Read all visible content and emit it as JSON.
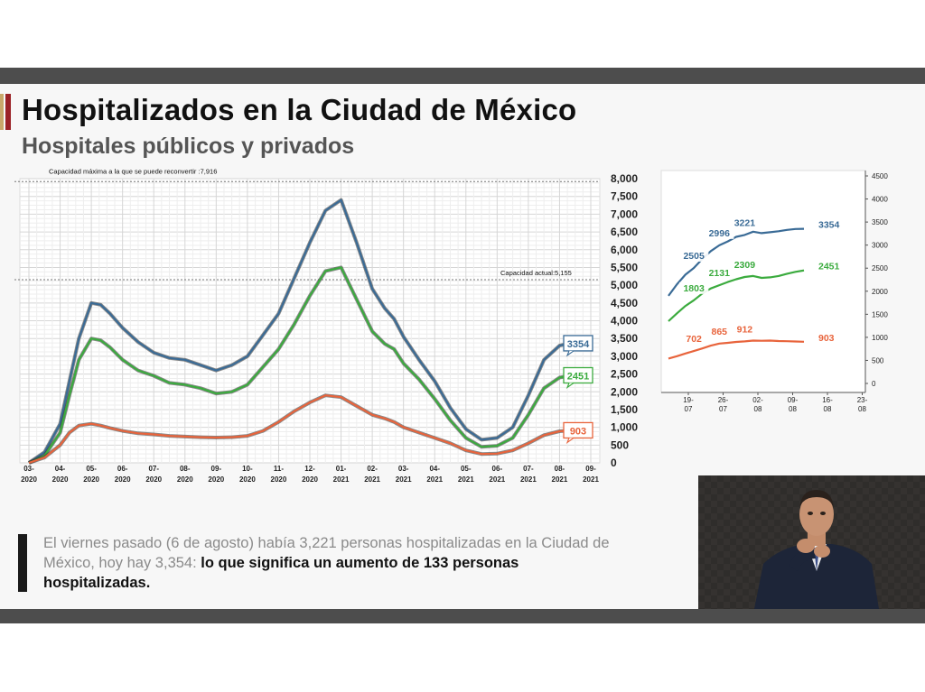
{
  "title": "Hospitalizados en la Ciudad de México",
  "subtitle": "Hospitales públicos y privados",
  "note": {
    "plain": "El viernes pasado (6 de agosto) había 3,221 personas hospitalizadas en la Ciudad de México, hoy hay 3,354: ",
    "bold": "lo que significa un aumento de 133 personas hospitalizadas."
  },
  "colors": {
    "total": "#3a6b96",
    "green": "#3bab3e",
    "orange": "#e8643c",
    "accent": "#9b2226"
  },
  "chart_data": [
    {
      "type": "line",
      "annotations": {
        "max_capacity": {
          "label": "Capacidad máxima a la que se puede reconvertir :7,916",
          "value": 7916
        },
        "current_capacity": {
          "label": "Capacidad actual:5,155",
          "value": 5155
        }
      },
      "x_ticks": [
        "03-2020",
        "04-2020",
        "05-2020",
        "06-2020",
        "07-2020",
        "08-2020",
        "09-2020",
        "10-2020",
        "11-2020",
        "12-2020",
        "01-2021",
        "02-2021",
        "03-2021",
        "04-2021",
        "05-2021",
        "06-2021",
        "07-2021",
        "08-2021",
        "09-2021"
      ],
      "x": [
        0,
        0.5,
        1,
        1.3,
        1.6,
        2,
        2.3,
        2.6,
        3,
        3.5,
        4,
        4.5,
        5,
        5.5,
        6,
        6.5,
        7,
        7.5,
        8,
        8.5,
        9,
        9.5,
        10,
        10.5,
        11,
        11.4,
        11.7,
        12,
        12.5,
        13,
        13.5,
        14,
        14.5,
        15,
        15.5,
        16,
        16.5,
        17,
        17.3,
        17.6
      ],
      "ylim": [
        0,
        8000
      ],
      "y_ticks": [
        "0",
        "500",
        "1,000",
        "1,500",
        "2,000",
        "2,500",
        "3,000",
        "3,500",
        "4,000",
        "4,500",
        "5,000",
        "5,500",
        "6,000",
        "6,500",
        "7,000",
        "7,500",
        "8,000"
      ],
      "series": [
        {
          "label": "3354",
          "values": [
            0,
            300,
            1100,
            2300,
            3500,
            4500,
            4450,
            4200,
            3800,
            3400,
            3100,
            2950,
            2900,
            2750,
            2600,
            2750,
            3000,
            3600,
            4200,
            5200,
            6200,
            7100,
            7400,
            6200,
            4900,
            4350,
            4050,
            3550,
            2900,
            2300,
            1550,
            950,
            650,
            700,
            1000,
            1900,
            2900,
            3300,
            3360,
            3354
          ]
        },
        {
          "label": "2451",
          "values": [
            0,
            200,
            850,
            1900,
            2900,
            3500,
            3450,
            3250,
            2900,
            2600,
            2450,
            2250,
            2200,
            2100,
            1950,
            2000,
            2200,
            2700,
            3200,
            3900,
            4700,
            5400,
            5500,
            4600,
            3700,
            3350,
            3200,
            2800,
            2350,
            1800,
            1200,
            700,
            450,
            480,
            700,
            1350,
            2100,
            2400,
            2450,
            2451
          ]
        },
        {
          "label": "903",
          "values": [
            0,
            150,
            500,
            850,
            1050,
            1100,
            1050,
            980,
            900,
            830,
            800,
            760,
            740,
            720,
            710,
            720,
            760,
            900,
            1150,
            1450,
            1700,
            1900,
            1850,
            1600,
            1350,
            1250,
            1150,
            1000,
            850,
            700,
            550,
            350,
            250,
            260,
            350,
            550,
            780,
            890,
            905,
            903
          ]
        }
      ]
    },
    {
      "type": "line",
      "x_ticks": [
        "19-07",
        "26-07",
        "02-08",
        "09-08",
        "16-08",
        "23-08"
      ],
      "ylim": [
        0,
        4500
      ],
      "y_ticks": [
        "0",
        "500",
        "1000",
        "1500",
        "2000",
        "2500",
        "3000",
        "3500",
        "4000",
        "4500"
      ],
      "x": [
        0,
        2,
        4,
        6,
        8,
        10,
        12,
        14,
        16,
        18,
        20,
        22,
        24,
        26,
        28,
        30,
        32
      ],
      "series": [
        {
          "label": "3354",
          "values": [
            1900,
            2150,
            2360,
            2505,
            2700,
            2870,
            2996,
            3080,
            3180,
            3221,
            3290,
            3260,
            3280,
            3300,
            3330,
            3350,
            3354
          ],
          "point_labels": [
            {
              "i": 3,
              "text": "2505"
            },
            {
              "i": 6,
              "text": "2996"
            },
            {
              "i": 9,
              "text": "3221"
            }
          ]
        },
        {
          "label": "2451",
          "values": [
            1350,
            1520,
            1680,
            1803,
            1950,
            2060,
            2131,
            2200,
            2260,
            2309,
            2330,
            2290,
            2300,
            2330,
            2380,
            2420,
            2451
          ],
          "point_labels": [
            {
              "i": 3,
              "text": "1803"
            },
            {
              "i": 6,
              "text": "2131"
            },
            {
              "i": 9,
              "text": "2309"
            }
          ]
        },
        {
          "label": "903",
          "values": [
            540,
            590,
            650,
            702,
            760,
            820,
            865,
            880,
            900,
            912,
            930,
            925,
            930,
            920,
            915,
            910,
            903
          ],
          "point_labels": [
            {
              "i": 3,
              "text": "702"
            },
            {
              "i": 6,
              "text": "865"
            },
            {
              "i": 9,
              "text": "912"
            }
          ]
        }
      ]
    }
  ]
}
